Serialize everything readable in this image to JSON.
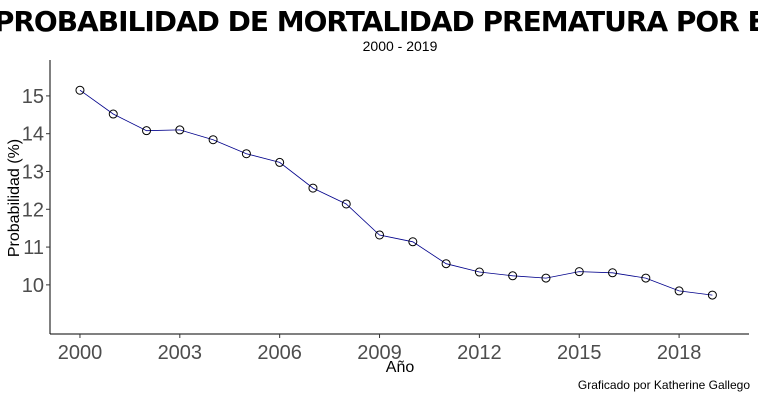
{
  "chart_data": {
    "type": "line",
    "title": "PROBABILIDAD DE MORTALIDAD PREMATURA POR ENT",
    "subtitle": "2000 - 2019",
    "xlabel": "Año",
    "ylabel": "Probabilidad (%)",
    "caption": "Graficado por Katherine Gallego",
    "xlim": [
      1999.1,
      2020.1
    ],
    "ylim": [
      8.7,
      15.95
    ],
    "x_ticks": [
      2000,
      2003,
      2006,
      2009,
      2012,
      2015,
      2018
    ],
    "y_ticks": [
      10,
      11,
      12,
      13,
      14,
      15
    ],
    "grid": false,
    "line_color": "#00008b",
    "marker": "open-circle",
    "series": [
      {
        "x": [
          2000,
          2001,
          2002,
          2003,
          2004,
          2005,
          2006,
          2007,
          2008,
          2009,
          2010,
          2011,
          2012,
          2013,
          2014,
          2015,
          2016,
          2017,
          2018,
          2019
        ],
        "values": [
          15.15,
          14.52,
          14.08,
          14.1,
          13.84,
          13.47,
          13.24,
          12.56,
          12.14,
          11.32,
          11.14,
          10.56,
          10.34,
          10.24,
          10.18,
          10.35,
          10.32,
          10.18,
          9.84,
          9.73
        ]
      }
    ]
  }
}
